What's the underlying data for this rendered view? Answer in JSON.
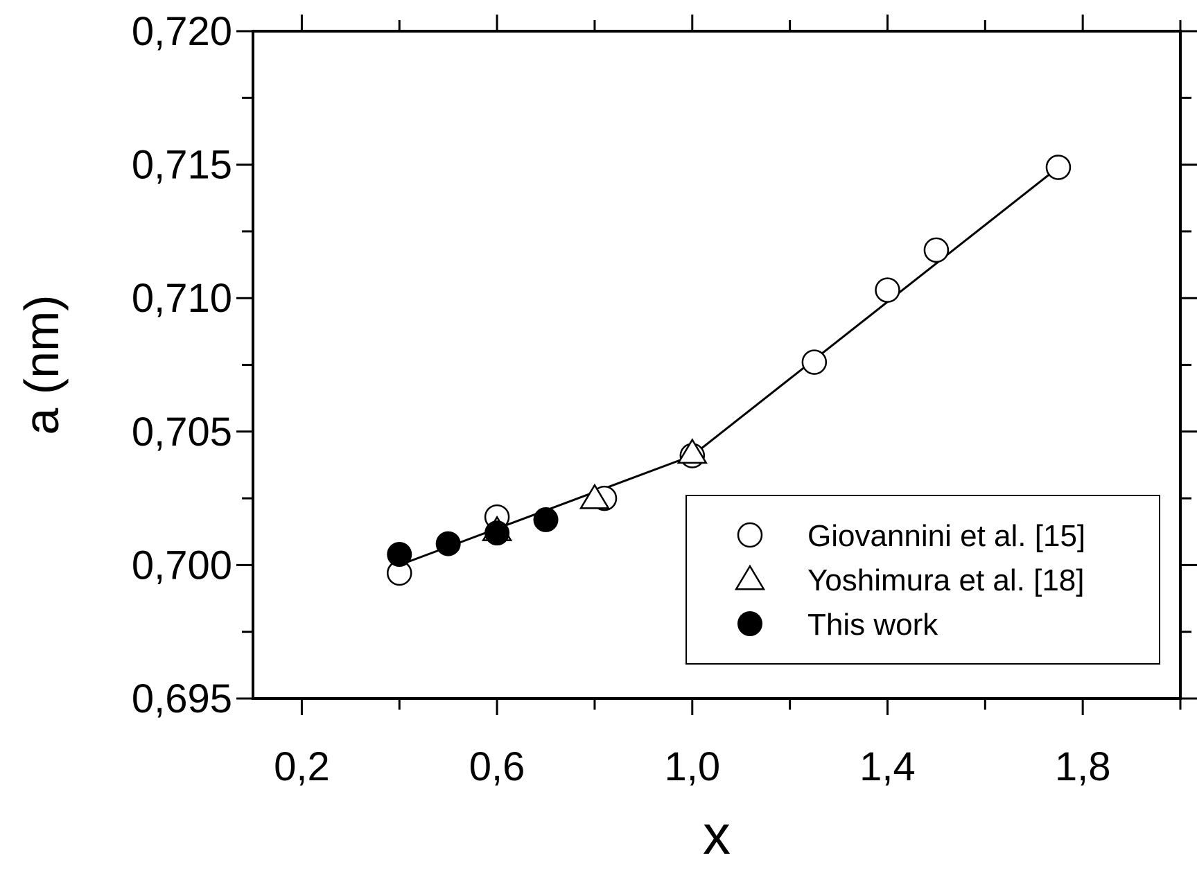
{
  "chart_data": {
    "type": "scatter",
    "xlabel": "x",
    "ylabel": "a (nm)",
    "xlim": [
      0.1,
      2.0
    ],
    "ylim": [
      0.695,
      0.72
    ],
    "x_ticks": [
      0.2,
      0.6,
      1.0,
      1.4,
      1.8
    ],
    "x_tick_labels": [
      "0,2",
      "0,6",
      "1,0",
      "1,4",
      "1,8"
    ],
    "y_ticks": [
      0.695,
      0.7,
      0.705,
      0.71,
      0.715,
      0.72
    ],
    "y_tick_labels": [
      "0,695",
      "0,700",
      "0,705",
      "0,710",
      "0,715",
      "0,720"
    ],
    "legend_position": "bottom-right",
    "series": [
      {
        "name": "Giovannini et al. [15]",
        "marker": "open-circle",
        "x": [
          0.4,
          0.6,
          0.82,
          1.0,
          1.25,
          1.4,
          1.5,
          1.75
        ],
        "y": [
          0.6997,
          0.7018,
          0.7025,
          0.7041,
          0.7076,
          0.7103,
          0.7118,
          0.7149
        ]
      },
      {
        "name": "Yoshimura et al. [18]",
        "marker": "open-triangle",
        "x": [
          0.6,
          0.8,
          1.0
        ],
        "y": [
          0.7013,
          0.7025,
          0.7042
        ]
      },
      {
        "name": "This work",
        "marker": "filled-circle",
        "x": [
          0.4,
          0.5,
          0.6,
          0.7
        ],
        "y": [
          0.7004,
          0.7008,
          0.7012,
          0.7017
        ]
      }
    ],
    "fit_line": {
      "x": [
        0.4,
        1.0,
        1.75
      ],
      "y": [
        0.7,
        0.7041,
        0.7149
      ]
    }
  }
}
